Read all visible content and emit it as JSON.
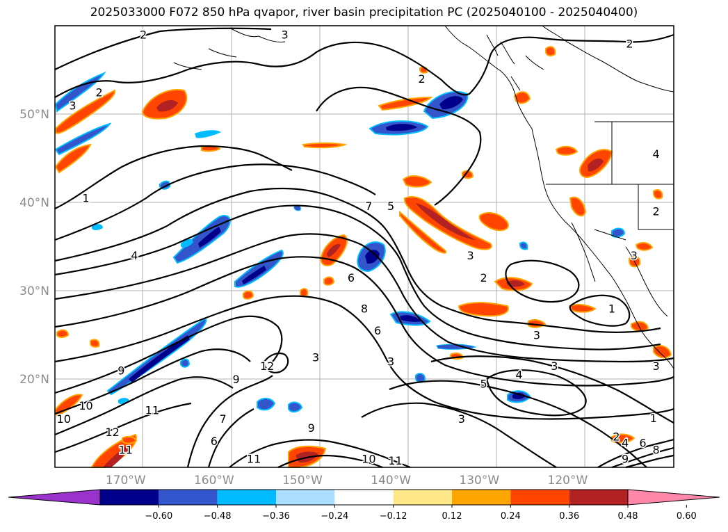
{
  "title": "2025033000 F072 850 hPa qvapor, river basin precipitation PC (2025040100 - 2025040400)",
  "lat_labels": [
    {
      "text": "50°N",
      "lat": 50
    },
    {
      "text": "40°N",
      "lat": 40
    },
    {
      "text": "30°N",
      "lat": 30
    },
    {
      "text": "20°N",
      "lat": 20
    }
  ],
  "lon_labels": [
    {
      "text": "170°W",
      "lon": -170
    },
    {
      "text": "160°W",
      "lon": -160
    },
    {
      "text": "150°W",
      "lon": -150
    },
    {
      "text": "140°W",
      "lon": -140
    },
    {
      "text": "130°W",
      "lon": -130
    },
    {
      "text": "120°W",
      "lon": -120
    }
  ],
  "extent": {
    "lon_min": -178,
    "lon_max": -108,
    "lat_min": 10,
    "lat_max": 60
  },
  "colorbar": {
    "colors": [
      "#9933cc",
      "#00008b",
      "#3355cc",
      "#00bbff",
      "#aaddff",
      "#ffffff",
      "#ffe88a",
      "#ffa500",
      "#ff4500",
      "#b22222",
      "#ff88aa"
    ],
    "tick_labels": [
      "−0.60",
      "−0.48",
      "−0.36",
      "−0.24",
      "−0.12",
      "0.12",
      "0.24",
      "0.36",
      "0.48",
      "0.60"
    ]
  },
  "contour_labels": [
    {
      "text": "2",
      "lon": -168,
      "lat": 59
    },
    {
      "text": "3",
      "lon": -152,
      "lat": 59
    },
    {
      "text": "2",
      "lon": -113,
      "lat": 58
    },
    {
      "text": "2",
      "lon": -173,
      "lat": 52.5
    },
    {
      "text": "3",
      "lon": -176,
      "lat": 51
    },
    {
      "text": "2",
      "lon": -136.5,
      "lat": 54
    },
    {
      "text": "1",
      "lon": -174.5,
      "lat": 40.5
    },
    {
      "text": "7",
      "lon": -142.5,
      "lat": 39.6
    },
    {
      "text": "5",
      "lon": -140,
      "lat": 39.6
    },
    {
      "text": "4",
      "lon": -169,
      "lat": 34
    },
    {
      "text": "6",
      "lon": -144.5,
      "lat": 31.5
    },
    {
      "text": "8",
      "lon": -143,
      "lat": 28
    },
    {
      "text": "6",
      "lon": -141.5,
      "lat": 25.5
    },
    {
      "text": "2",
      "lon": -129.5,
      "lat": 31.5
    },
    {
      "text": "3",
      "lon": -131,
      "lat": 34
    },
    {
      "text": "1",
      "lon": -115,
      "lat": 28
    },
    {
      "text": "3",
      "lon": -112.5,
      "lat": 34
    },
    {
      "text": "3",
      "lon": -123.5,
      "lat": 25
    },
    {
      "text": "3",
      "lon": -148.5,
      "lat": 22.5
    },
    {
      "text": "3",
      "lon": -140,
      "lat": 22
    },
    {
      "text": "3",
      "lon": -121.5,
      "lat": 21.5
    },
    {
      "text": "4",
      "lon": -125.5,
      "lat": 20.5
    },
    {
      "text": "5",
      "lon": -129.5,
      "lat": 19.5
    },
    {
      "text": "3",
      "lon": -110,
      "lat": 21.5
    },
    {
      "text": "9",
      "lon": -170.5,
      "lat": 21
    },
    {
      "text": "9",
      "lon": -157.5,
      "lat": 20
    },
    {
      "text": "12",
      "lon": -154,
      "lat": 21.5
    },
    {
      "text": "10",
      "lon": -174.5,
      "lat": 17
    },
    {
      "text": "11",
      "lon": -167,
      "lat": 16.5
    },
    {
      "text": "12",
      "lon": -171.5,
      "lat": 14
    },
    {
      "text": "10",
      "lon": -177,
      "lat": 15.5
    },
    {
      "text": "7",
      "lon": -159,
      "lat": 15.5
    },
    {
      "text": "6",
      "lon": -160,
      "lat": 13
    },
    {
      "text": "9",
      "lon": -149,
      "lat": 14.5
    },
    {
      "text": "11",
      "lon": -170,
      "lat": 12
    },
    {
      "text": "11",
      "lon": -155.5,
      "lat": 11
    },
    {
      "text": "10",
      "lon": -142.5,
      "lat": 11
    },
    {
      "text": "11",
      "lon": -139.5,
      "lat": 10.8
    },
    {
      "text": "3",
      "lon": -132,
      "lat": 15.5
    },
    {
      "text": "2",
      "lon": -114.5,
      "lat": 13.5
    },
    {
      "text": "4",
      "lon": -113.5,
      "lat": 12.8
    },
    {
      "text": "6",
      "lon": -111.5,
      "lat": 12.8
    },
    {
      "text": "8",
      "lon": -110,
      "lat": 12
    },
    {
      "text": "9",
      "lon": -113.5,
      "lat": 11
    },
    {
      "text": "1",
      "lon": -110.3,
      "lat": 15.6
    },
    {
      "text": "4",
      "lon": -110,
      "lat": 45.5
    },
    {
      "text": "2",
      "lon": -110,
      "lat": 39
    }
  ]
}
